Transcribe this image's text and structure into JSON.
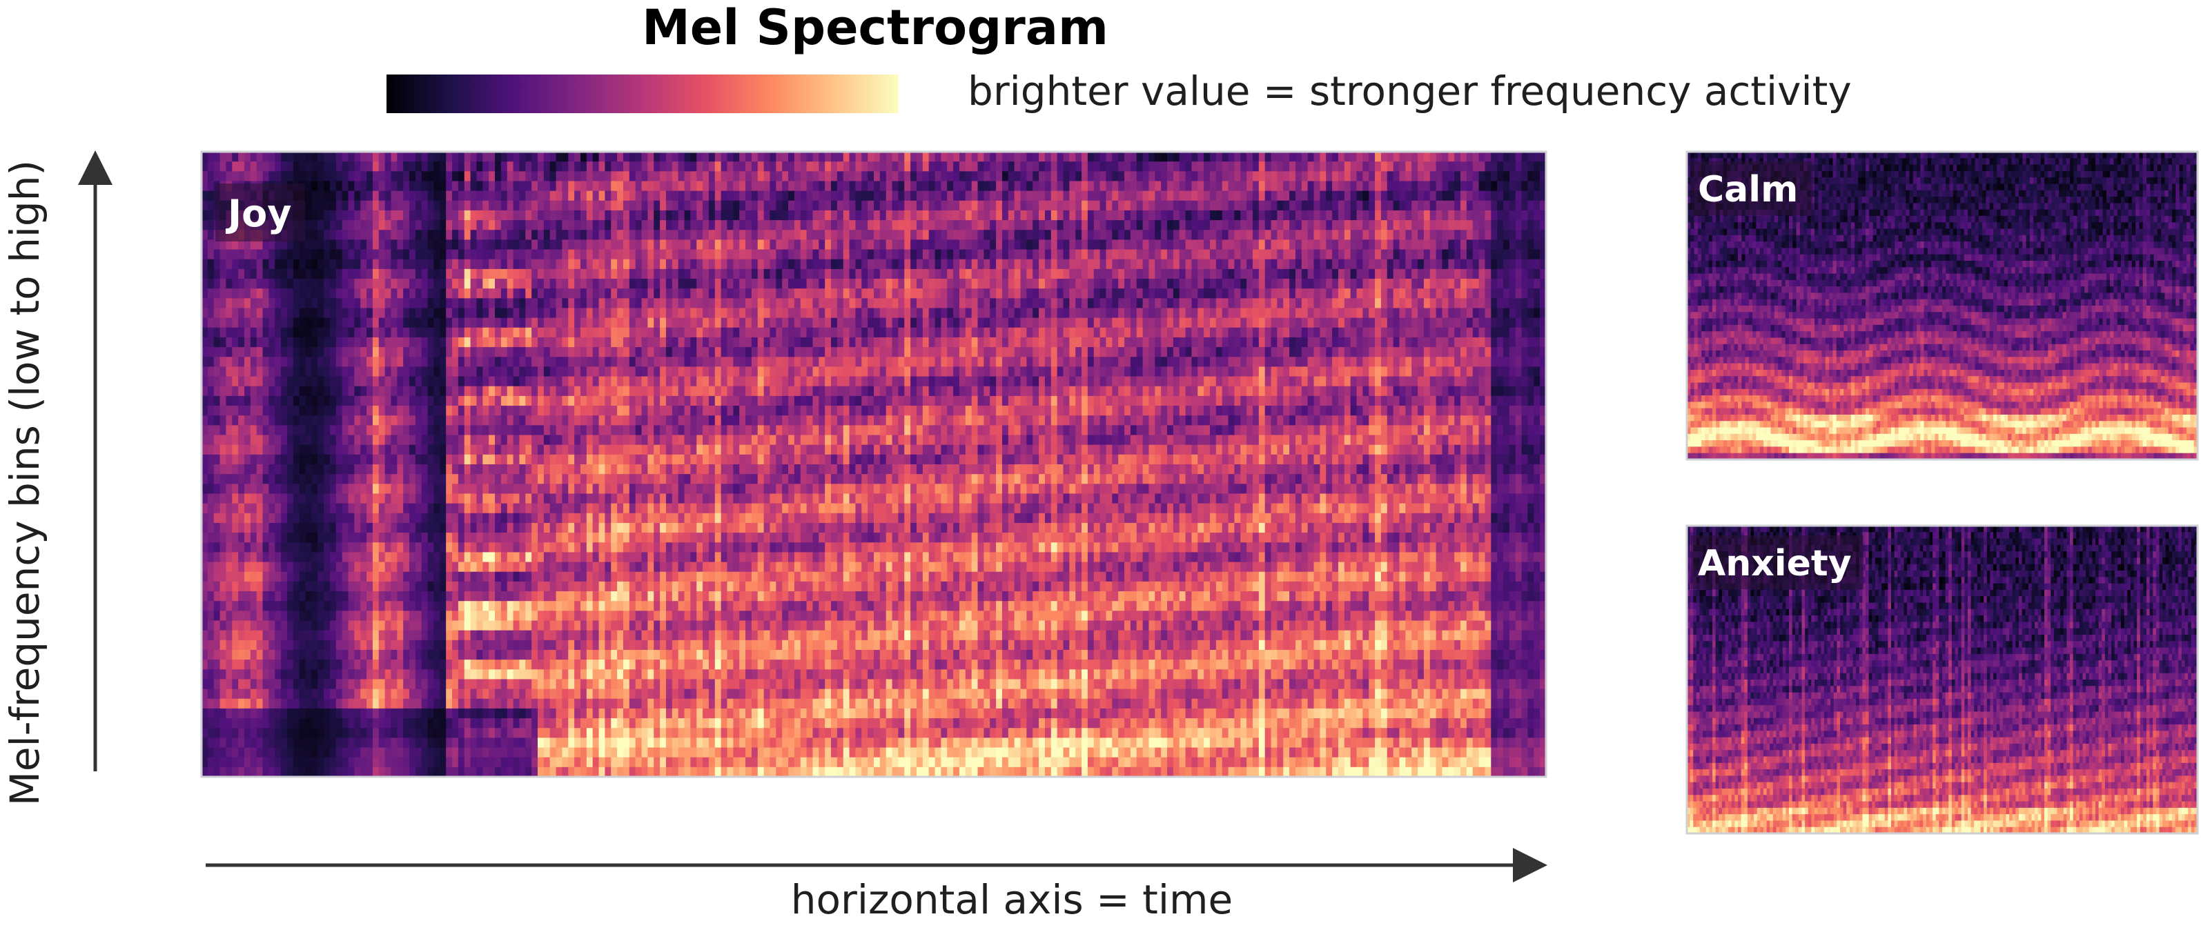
{
  "chart_data": {
    "type": "heatmap",
    "title": "Mel Spectrogram",
    "colorbar": {
      "label": "brighter value = stronger frequency activity",
      "colormap": "magma",
      "stops": [
        "#000004",
        "#1d1147",
        "#51127c",
        "#822681",
        "#b73779",
        "#e75263",
        "#fc8961",
        "#fec488",
        "#fcfdbf"
      ]
    },
    "xlabel": "horizontal axis = time",
    "ylabel": "Mel-frequency bins (low to high)",
    "grid": false,
    "panels": [
      {
        "name": "Joy",
        "size": "large",
        "time_frames": 220,
        "mel_bins": 64,
        "profile": "bright broadband energy with dense transients; darker quiet section near the start and at the end"
      },
      {
        "name": "Calm",
        "size": "small",
        "time_frames": 140,
        "mel_bins": 48,
        "profile": "energy concentrated in low bins, smooth harmonic bands, dark upper bins"
      },
      {
        "name": "Anxiety",
        "size": "small",
        "time_frames": 160,
        "mel_bins": 48,
        "profile": "many short vertical transients, energy in low bins, dim upper bins"
      }
    ]
  }
}
